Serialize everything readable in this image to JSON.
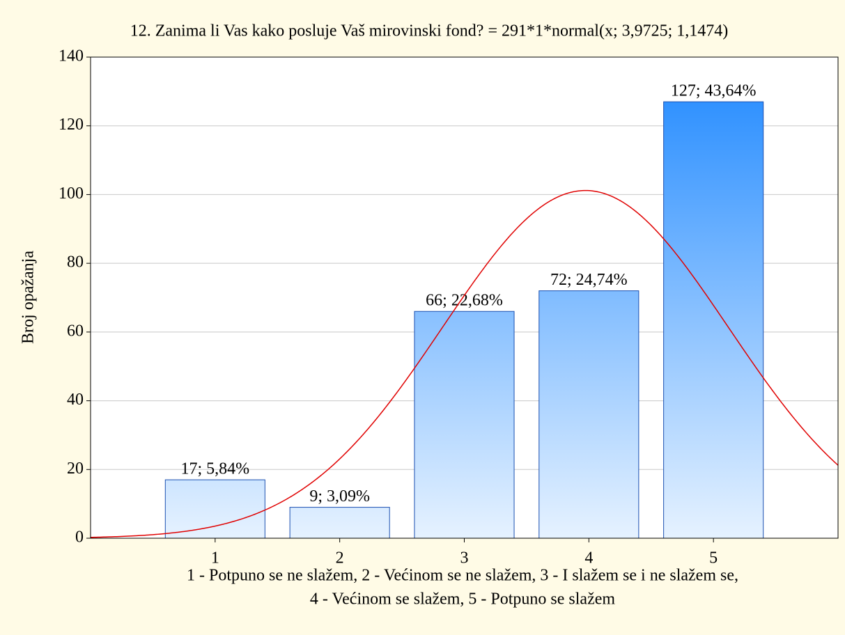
{
  "chart_data": {
    "type": "histogram",
    "title": "12. Zanima li Vas kako posluje Vaš mirovinski fond? = 291*1*normal(x; 3,9725; 1,1474)",
    "ylabel": "Broj opažanja",
    "xlabel": [
      "1 - Potpuno se ne slažem, 2 - Većinom se ne slažem, 3 - I slažem se i ne slažem se,",
      "4 - Većinom se slažem, 5 - Potpuno se slažem"
    ],
    "x": [
      1,
      2,
      3,
      4,
      5
    ],
    "values": [
      17,
      9,
      66,
      72,
      127
    ],
    "value_labels": [
      "17; 5,84%",
      "9; 3,09%",
      "66; 22,68%",
      "72; 24,74%",
      "127; 43,64%"
    ],
    "colors": [
      "#e6f2ff",
      "#1e88ff"
    ],
    "fit": {
      "type": "normal",
      "n": 291,
      "width": 1,
      "mean": 3.9725,
      "sd": 1.1474,
      "color": "#e00000"
    },
    "xlim": [
      0,
      6
    ],
    "xticks": [
      1,
      2,
      3,
      4,
      5
    ],
    "ylim": [
      0,
      140
    ],
    "yticks": [
      0,
      20,
      40,
      60,
      80,
      100,
      120,
      140
    ],
    "grid": true
  }
}
